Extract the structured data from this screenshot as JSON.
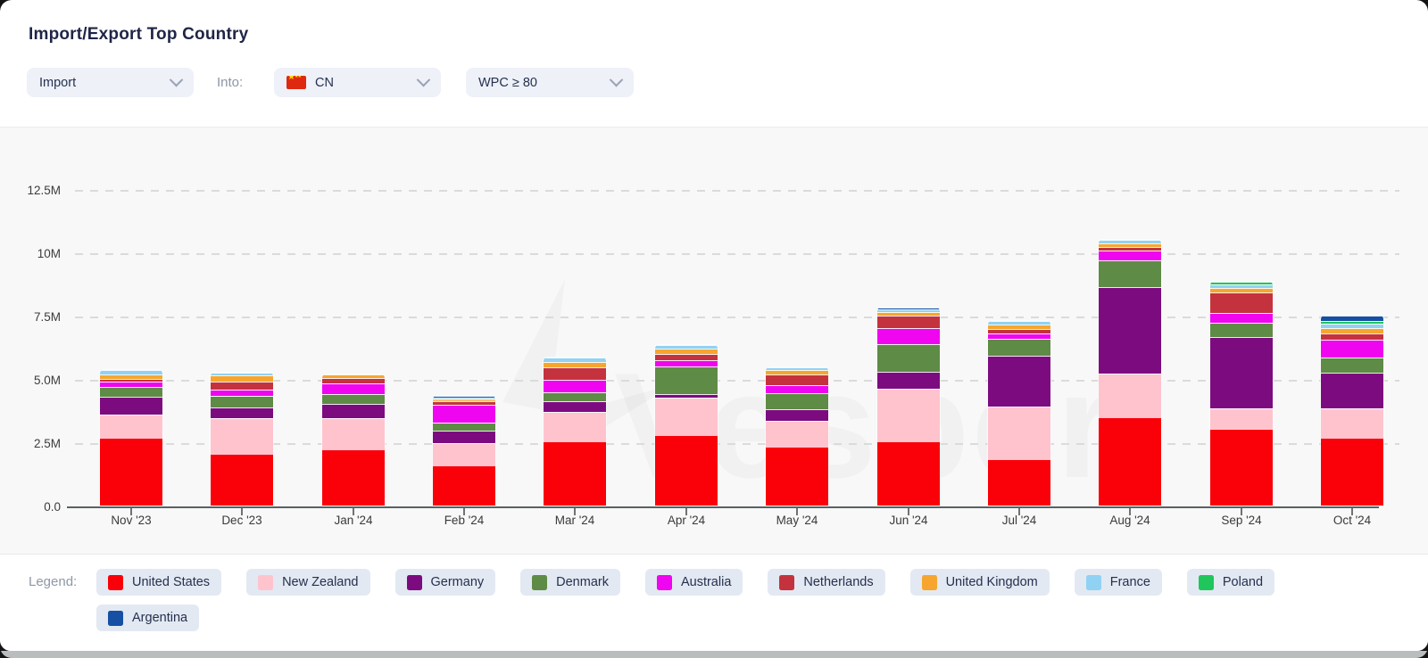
{
  "header": {
    "title": "Import/Export Top Country"
  },
  "filters": {
    "direction": {
      "value": "Import"
    },
    "into_label": "Into:",
    "country": {
      "value": "CN",
      "flag_icon": "china-flag"
    },
    "wpc": {
      "value": "WPC ≥ 80"
    }
  },
  "watermark": {
    "text": "Vesper"
  },
  "legend": {
    "label": "Legend:",
    "items": [
      "United States",
      "New Zealand",
      "Germany",
      "Denmark",
      "Australia",
      "Netherlands",
      "United Kingdom",
      "France",
      "Poland",
      "Argentina"
    ]
  },
  "chart_data": {
    "type": "bar",
    "stacked": true,
    "title": "Import/Export Top Country",
    "xlabel": "",
    "ylabel": "",
    "unit": "millions",
    "ylim": [
      0,
      13.5
    ],
    "grid": "horizontal-dashed",
    "legend_position": "bottom",
    "categories": [
      "Nov '23",
      "Dec '23",
      "Jan '24",
      "Feb '24",
      "Mar '24",
      "Apr '24",
      "May '24",
      "Jun '24",
      "Jul '24",
      "Aug '24",
      "Sep '24",
      "Oct '24"
    ],
    "y_ticks": [
      {
        "label": "0.0",
        "value": 0
      },
      {
        "label": "2.5M",
        "value": 2.5
      },
      {
        "label": "5.0M",
        "value": 5
      },
      {
        "label": "7.5M",
        "value": 7.5
      },
      {
        "label": "10M",
        "value": 10
      },
      {
        "label": "12.5M",
        "value": 12.5
      }
    ],
    "series": [
      {
        "name": "United States",
        "color": "#fa0008",
        "values": [
          2.65,
          2.0,
          2.2,
          1.55,
          2.5,
          2.75,
          2.3,
          2.5,
          1.8,
          3.45,
          3.0,
          2.65
        ]
      },
      {
        "name": "New Zealand",
        "color": "#ffc3ce",
        "values": [
          0.95,
          1.45,
          1.25,
          0.92,
          1.2,
          1.5,
          1.05,
          2.1,
          2.1,
          1.75,
          0.85,
          1.18
        ]
      },
      {
        "name": "Germany",
        "color": "#7d0b80",
        "values": [
          0.7,
          0.42,
          0.55,
          0.5,
          0.42,
          0.15,
          0.45,
          0.68,
          2.0,
          3.4,
          2.8,
          1.4
        ]
      },
      {
        "name": "Denmark",
        "color": "#5e8b45",
        "values": [
          0.4,
          0.47,
          0.4,
          0.32,
          0.36,
          1.1,
          0.64,
          1.1,
          0.68,
          1.05,
          0.55,
          0.6
        ]
      },
      {
        "name": "Australia",
        "color": "#ef05ef",
        "values": [
          0.2,
          0.25,
          0.44,
          0.72,
          0.48,
          0.25,
          0.33,
          0.63,
          0.21,
          0.37,
          0.37,
          0.7
        ]
      },
      {
        "name": "Netherlands",
        "color": "#c4333d",
        "values": [
          0.09,
          0.33,
          0.2,
          0.15,
          0.48,
          0.23,
          0.44,
          0.5,
          0.19,
          0.15,
          0.82,
          0.25
        ]
      },
      {
        "name": "United Kingdom",
        "color": "#f6a62f",
        "values": [
          0.17,
          0.25,
          0.13,
          0.08,
          0.22,
          0.22,
          0.19,
          0.15,
          0.19,
          0.15,
          0.18,
          0.21
        ]
      },
      {
        "name": "France",
        "color": "#90d2f3",
        "values": [
          0.19,
          0.09,
          0.0,
          0.08,
          0.19,
          0.13,
          0.12,
          0.09,
          0.14,
          0.15,
          0.15,
          0.16
        ]
      },
      {
        "name": "Poland",
        "color": "#1fc65c",
        "values": [
          0.0,
          0.0,
          0.0,
          0.0,
          0.0,
          0.0,
          0.0,
          0.0,
          0.0,
          0.0,
          0.1,
          0.09
        ]
      },
      {
        "name": "Argentina",
        "color": "#1550a4",
        "values": [
          0.0,
          0.0,
          0.0,
          0.08,
          0.0,
          0.0,
          0.0,
          0.08,
          0.0,
          0.0,
          0.0,
          0.22
        ]
      }
    ]
  }
}
